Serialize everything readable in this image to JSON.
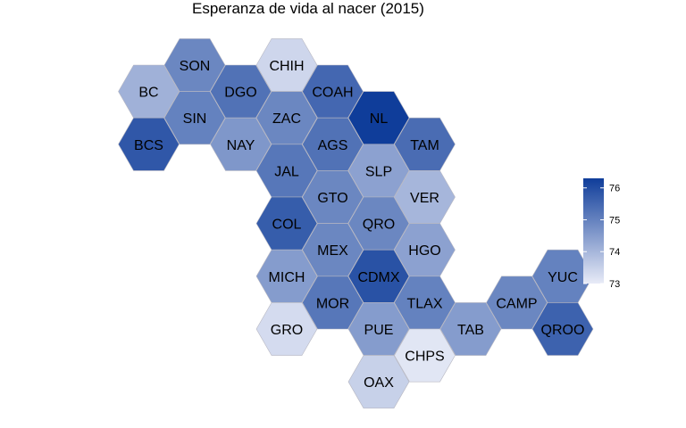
{
  "chart_data": {
    "type": "heatmap",
    "title": "Esperanza de vida al nacer (2015)",
    "colors": {
      "low": "#e8ebf7",
      "high": "#0f3d9a",
      "border": "#b8b8c2"
    },
    "legend": {
      "placement": "right",
      "min": 73.0,
      "max": 76.3,
      "ticks": [
        73,
        74,
        75,
        76
      ]
    },
    "states": [
      {
        "id": "SON",
        "col": 1,
        "row": 0,
        "value": 74.9
      },
      {
        "id": "CHIH",
        "col": 2,
        "row": 0,
        "value": 73.4
      },
      {
        "id": "BC",
        "col": 0.5,
        "row": 1,
        "value": 74.1
      },
      {
        "id": "DGO",
        "col": 1.5,
        "row": 1,
        "value": 75.3
      },
      {
        "id": "COAH",
        "col": 2.5,
        "row": 1,
        "value": 75.5
      },
      {
        "id": "SIN",
        "col": 1,
        "row": 2,
        "value": 75.0
      },
      {
        "id": "ZAC",
        "col": 2,
        "row": 2,
        "value": 74.9
      },
      {
        "id": "NL",
        "col": 3,
        "row": 2,
        "value": 76.3
      },
      {
        "id": "BCS",
        "col": 0.5,
        "row": 3,
        "value": 75.8
      },
      {
        "id": "NAY",
        "col": 1.5,
        "row": 3,
        "value": 74.6
      },
      {
        "id": "AGS",
        "col": 2.5,
        "row": 3,
        "value": 75.3
      },
      {
        "id": "TAM",
        "col": 3.5,
        "row": 3,
        "value": 75.4
      },
      {
        "id": "JAL",
        "col": 2,
        "row": 4,
        "value": 75.2
      },
      {
        "id": "SLP",
        "col": 3,
        "row": 4,
        "value": 74.4
      },
      {
        "id": "GTO",
        "col": 2.5,
        "row": 5,
        "value": 74.9
      },
      {
        "id": "VER",
        "col": 3.5,
        "row": 5,
        "value": 74.0
      },
      {
        "id": "COL",
        "col": 2,
        "row": 6,
        "value": 75.7
      },
      {
        "id": "QRO",
        "col": 3,
        "row": 6,
        "value": 74.9
      },
      {
        "id": "MEX",
        "col": 2.5,
        "row": 7,
        "value": 74.9
      },
      {
        "id": "HGO",
        "col": 3.5,
        "row": 7,
        "value": 74.4
      },
      {
        "id": "MICH",
        "col": 2,
        "row": 8,
        "value": 74.5
      },
      {
        "id": "CDMX",
        "col": 3,
        "row": 8,
        "value": 75.9
      },
      {
        "id": "YUC",
        "col": 5,
        "row": 8,
        "value": 75.0
      },
      {
        "id": "MOR",
        "col": 2.5,
        "row": 9,
        "value": 75.2
      },
      {
        "id": "TLAX",
        "col": 3.5,
        "row": 9,
        "value": 75.0
      },
      {
        "id": "CAMP",
        "col": 4.5,
        "row": 9,
        "value": 74.9
      },
      {
        "id": "GRO",
        "col": 2,
        "row": 10,
        "value": 73.3
      },
      {
        "id": "PUE",
        "col": 3,
        "row": 10,
        "value": 74.5
      },
      {
        "id": "TAB",
        "col": 4,
        "row": 10,
        "value": 74.5
      },
      {
        "id": "QROO",
        "col": 5,
        "row": 10,
        "value": 75.6
      },
      {
        "id": "CHPS",
        "col": 3.5,
        "row": 11,
        "value": 73.1
      },
      {
        "id": "OAX",
        "col": 3,
        "row": 12,
        "value": 73.5
      }
    ]
  }
}
